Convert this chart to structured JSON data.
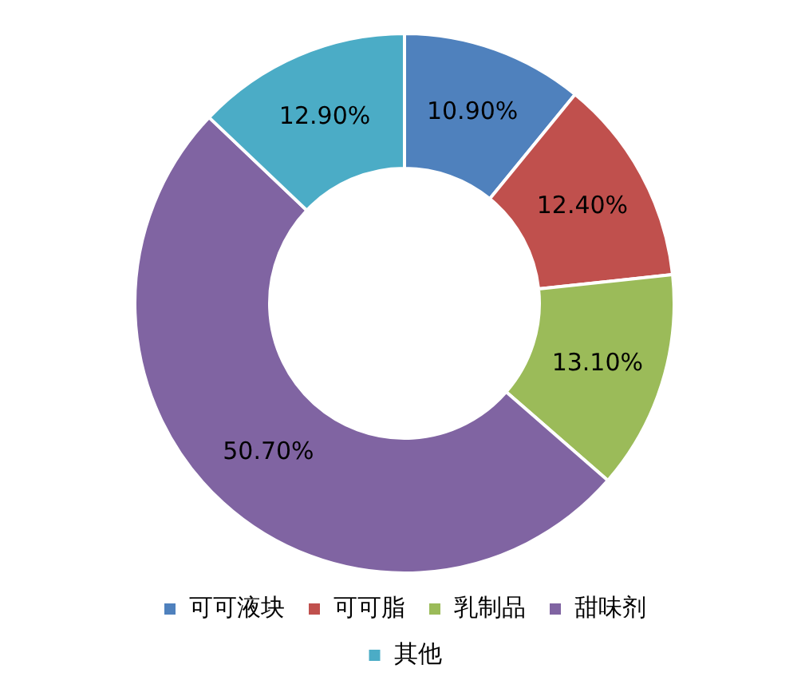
{
  "chart_data": {
    "type": "donut",
    "categories": [
      "可可液块",
      "可可脂",
      "乳制品",
      "甜味剂",
      "其他"
    ],
    "values": [
      10.9,
      12.4,
      13.1,
      50.7,
      12.9
    ],
    "value_labels": [
      "10.90%",
      "12.40%",
      "13.10%",
      "50.70%",
      "12.90%"
    ],
    "colors": [
      "#4f81bd",
      "#c0504d",
      "#9bbb59",
      "#8064a2",
      "#4bacc6"
    ],
    "legend": "bottom"
  }
}
